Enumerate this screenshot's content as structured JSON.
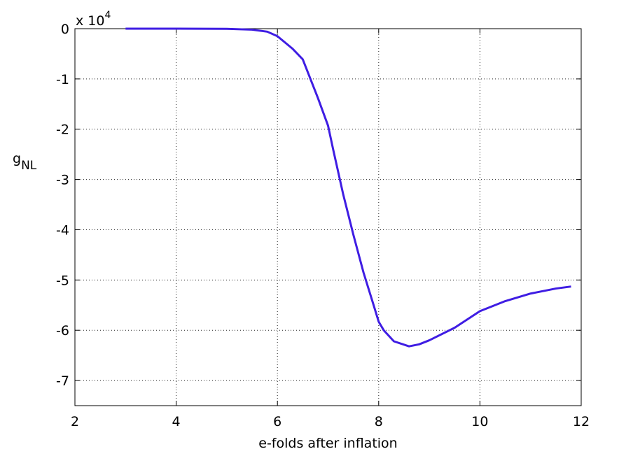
{
  "chart_data": {
    "type": "line",
    "xlabel": "e-folds after inflation",
    "ylabel": {
      "base": "g",
      "subscript": "NL"
    },
    "yexponent": {
      "base": "x 10",
      "power": "4"
    },
    "x": [
      3,
      4,
      5,
      5.5,
      5.8,
      6,
      6.3,
      6.5,
      6.8,
      7,
      7.1,
      7.3,
      7.5,
      7.7,
      7.9,
      8,
      8.1,
      8.3,
      8.6,
      8.8,
      9,
      9.5,
      10,
      10.5,
      11,
      11.5,
      11.8
    ],
    "series": [
      {
        "name": "g_NL",
        "color": "#3f1de3",
        "values": [
          0,
          0,
          -0.003,
          -0.02,
          -0.06,
          -0.15,
          -0.4,
          -0.61,
          -1.38,
          -1.93,
          -2.4,
          -3.3,
          -4.1,
          -4.85,
          -5.5,
          -5.83,
          -6.0,
          -6.22,
          -6.32,
          -6.28,
          -6.2,
          -5.95,
          -5.62,
          -5.42,
          -5.27,
          -5.17,
          -5.13
        ]
      }
    ],
    "xlim": [
      2,
      12
    ],
    "ylim": [
      -7.5,
      0
    ],
    "xticks": [
      2,
      4,
      6,
      8,
      10,
      12
    ],
    "yticks": [
      0,
      -1,
      -2,
      -3,
      -4,
      -5,
      -6,
      -7
    ],
    "grid": true
  }
}
